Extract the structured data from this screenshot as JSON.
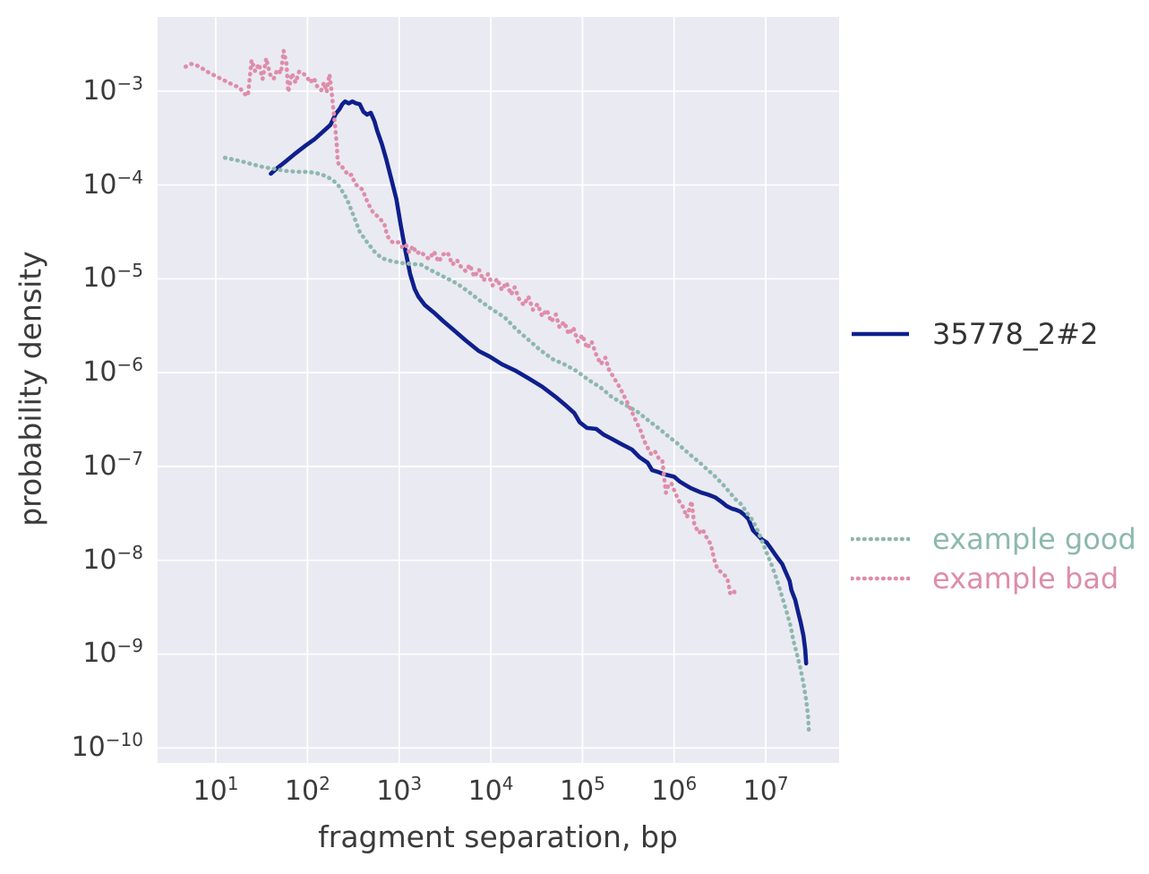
{
  "colors": {
    "figure_bg": "#ffffff",
    "plot_bg": "#eaeaf2",
    "grid": "#ffffff",
    "text": "#3b3b3b",
    "legend_main_text": "#333333"
  },
  "chart_data": {
    "type": "line",
    "title": "",
    "xlabel": "fragment separation, bp",
    "ylabel": "probability density",
    "x_scale": "log",
    "y_scale": "log",
    "xlim_log10": [
      0.365,
      7.8
    ],
    "ylim_log10": [
      -10.16,
      -2.21
    ],
    "x_tick_exponents": [
      1,
      2,
      3,
      4,
      5,
      6,
      7
    ],
    "y_tick_exponents": [
      -3,
      -4,
      -5,
      -6,
      -7,
      -8,
      -9,
      -10
    ],
    "grid": true,
    "legend_position": "right-outside",
    "series": [
      {
        "name": "35778_2#2",
        "color": "#0e1f8d",
        "linestyle": "solid",
        "linewidth": 4.6,
        "points_log10": [
          [
            1.6,
            -3.88
          ],
          [
            1.67,
            -3.82
          ],
          [
            1.76,
            -3.75
          ],
          [
            1.86,
            -3.67
          ],
          [
            1.98,
            -3.58
          ],
          [
            2.08,
            -3.51
          ],
          [
            2.16,
            -3.44
          ],
          [
            2.25,
            -3.36
          ],
          [
            2.28,
            -3.3
          ],
          [
            2.31,
            -3.24
          ],
          [
            2.35,
            -3.19
          ],
          [
            2.38,
            -3.14
          ],
          [
            2.41,
            -3.11
          ],
          [
            2.45,
            -3.13
          ],
          [
            2.49,
            -3.11
          ],
          [
            2.53,
            -3.13
          ],
          [
            2.57,
            -3.14
          ],
          [
            2.61,
            -3.22
          ],
          [
            2.65,
            -3.25
          ],
          [
            2.69,
            -3.23
          ],
          [
            2.73,
            -3.32
          ],
          [
            2.76,
            -3.42
          ],
          [
            2.81,
            -3.56
          ],
          [
            2.86,
            -3.73
          ],
          [
            2.91,
            -3.92
          ],
          [
            2.97,
            -4.15
          ],
          [
            3.02,
            -4.44
          ],
          [
            3.07,
            -4.71
          ],
          [
            3.12,
            -4.95
          ],
          [
            3.17,
            -5.11
          ],
          [
            3.21,
            -5.19
          ],
          [
            3.28,
            -5.28
          ],
          [
            3.38,
            -5.36
          ],
          [
            3.48,
            -5.45
          ],
          [
            3.6,
            -5.55
          ],
          [
            3.73,
            -5.66
          ],
          [
            3.87,
            -5.77
          ],
          [
            3.99,
            -5.83
          ],
          [
            4.12,
            -5.91
          ],
          [
            4.27,
            -5.98
          ],
          [
            4.41,
            -6.06
          ],
          [
            4.56,
            -6.15
          ],
          [
            4.71,
            -6.26
          ],
          [
            4.83,
            -6.36
          ],
          [
            4.91,
            -6.43
          ],
          [
            4.97,
            -6.53
          ],
          [
            5.05,
            -6.59
          ],
          [
            5.15,
            -6.6
          ],
          [
            5.23,
            -6.66
          ],
          [
            5.31,
            -6.7
          ],
          [
            5.42,
            -6.76
          ],
          [
            5.54,
            -6.82
          ],
          [
            5.62,
            -6.9
          ],
          [
            5.71,
            -6.96
          ],
          [
            5.76,
            -7.04
          ],
          [
            5.83,
            -7.06
          ],
          [
            5.88,
            -7.08
          ],
          [
            6.0,
            -7.11
          ],
          [
            6.06,
            -7.16
          ],
          [
            6.11,
            -7.19
          ],
          [
            6.18,
            -7.23
          ],
          [
            6.25,
            -7.26
          ],
          [
            6.3,
            -7.28
          ],
          [
            6.37,
            -7.3
          ],
          [
            6.45,
            -7.33
          ],
          [
            6.52,
            -7.38
          ],
          [
            6.57,
            -7.42
          ],
          [
            6.63,
            -7.45
          ],
          [
            6.67,
            -7.46
          ],
          [
            6.72,
            -7.48
          ],
          [
            6.77,
            -7.52
          ],
          [
            6.81,
            -7.56
          ],
          [
            6.86,
            -7.68
          ],
          [
            6.91,
            -7.73
          ],
          [
            6.96,
            -7.78
          ],
          [
            7.01,
            -7.81
          ],
          [
            7.06,
            -7.88
          ],
          [
            7.11,
            -7.95
          ],
          [
            7.14,
            -7.99
          ],
          [
            7.18,
            -8.04
          ],
          [
            7.21,
            -8.11
          ],
          [
            7.26,
            -8.22
          ],
          [
            7.28,
            -8.32
          ],
          [
            7.32,
            -8.42
          ],
          [
            7.35,
            -8.54
          ],
          [
            7.38,
            -8.66
          ],
          [
            7.41,
            -8.8
          ],
          [
            7.43,
            -8.95
          ],
          [
            7.44,
            -9.1
          ]
        ]
      },
      {
        "name": "example good",
        "color": "#8db8ad",
        "linestyle": "dotted",
        "linewidth": 4.6,
        "points_log10": [
          [
            1.1,
            -3.71
          ],
          [
            1.2,
            -3.73
          ],
          [
            1.29,
            -3.75
          ],
          [
            1.4,
            -3.78
          ],
          [
            1.52,
            -3.81
          ],
          [
            1.64,
            -3.83
          ],
          [
            1.76,
            -3.85
          ],
          [
            1.89,
            -3.86
          ],
          [
            2.01,
            -3.86
          ],
          [
            2.13,
            -3.88
          ],
          [
            2.21,
            -3.91
          ],
          [
            2.28,
            -3.95
          ],
          [
            2.35,
            -4.02
          ],
          [
            2.43,
            -4.15
          ],
          [
            2.5,
            -4.32
          ],
          [
            2.57,
            -4.5
          ],
          [
            2.65,
            -4.61
          ],
          [
            2.73,
            -4.71
          ],
          [
            2.81,
            -4.78
          ],
          [
            2.91,
            -4.81
          ],
          [
            3.01,
            -4.83
          ],
          [
            3.12,
            -4.84
          ],
          [
            3.24,
            -4.85
          ],
          [
            3.33,
            -4.9
          ],
          [
            3.43,
            -4.95
          ],
          [
            3.53,
            -5.0
          ],
          [
            3.63,
            -5.05
          ],
          [
            3.76,
            -5.14
          ],
          [
            3.89,
            -5.24
          ],
          [
            4.02,
            -5.33
          ],
          [
            4.15,
            -5.41
          ],
          [
            4.28,
            -5.54
          ],
          [
            4.41,
            -5.65
          ],
          [
            4.54,
            -5.76
          ],
          [
            4.68,
            -5.86
          ],
          [
            4.8,
            -5.91
          ],
          [
            4.93,
            -5.98
          ],
          [
            5.07,
            -6.08
          ],
          [
            5.2,
            -6.16
          ],
          [
            5.32,
            -6.26
          ],
          [
            5.46,
            -6.34
          ],
          [
            5.59,
            -6.41
          ],
          [
            5.72,
            -6.51
          ],
          [
            5.84,
            -6.6
          ],
          [
            5.95,
            -6.69
          ],
          [
            6.03,
            -6.75
          ],
          [
            6.11,
            -6.82
          ],
          [
            6.18,
            -6.88
          ],
          [
            6.28,
            -6.96
          ],
          [
            6.37,
            -7.04
          ],
          [
            6.44,
            -7.1
          ],
          [
            6.54,
            -7.2
          ],
          [
            6.6,
            -7.27
          ],
          [
            6.67,
            -7.35
          ],
          [
            6.74,
            -7.41
          ],
          [
            6.79,
            -7.49
          ],
          [
            6.86,
            -7.58
          ],
          [
            6.92,
            -7.7
          ],
          [
            6.96,
            -7.8
          ],
          [
            7.01,
            -7.92
          ],
          [
            7.06,
            -8.04
          ],
          [
            7.11,
            -8.18
          ],
          [
            7.15,
            -8.3
          ],
          [
            7.19,
            -8.43
          ],
          [
            7.23,
            -8.56
          ],
          [
            7.27,
            -8.7
          ],
          [
            7.3,
            -8.85
          ],
          [
            7.34,
            -9.0
          ],
          [
            7.38,
            -9.16
          ],
          [
            7.41,
            -9.31
          ],
          [
            7.44,
            -9.49
          ],
          [
            7.46,
            -9.65
          ],
          [
            7.47,
            -9.81
          ]
        ]
      },
      {
        "name": "example bad",
        "color": "#de8da8",
        "linestyle": "dotted",
        "linewidth": 4.6,
        "points_log10": [
          [
            0.67,
            -2.74
          ],
          [
            0.73,
            -2.71
          ],
          [
            0.78,
            -2.72
          ],
          [
            0.84,
            -2.75
          ],
          [
            0.9,
            -2.79
          ],
          [
            0.96,
            -2.82
          ],
          [
            1.02,
            -2.85
          ],
          [
            1.08,
            -2.88
          ],
          [
            1.14,
            -2.91
          ],
          [
            1.2,
            -2.94
          ],
          [
            1.26,
            -2.96
          ],
          [
            1.3,
            -3.02
          ],
          [
            1.35,
            -3.05
          ],
          [
            1.39,
            -2.67
          ],
          [
            1.43,
            -2.79
          ],
          [
            1.47,
            -2.71
          ],
          [
            1.51,
            -2.87
          ],
          [
            1.55,
            -2.65
          ],
          [
            1.59,
            -2.82
          ],
          [
            1.63,
            -2.87
          ],
          [
            1.67,
            -2.77
          ],
          [
            1.71,
            -2.81
          ],
          [
            1.74,
            -2.57
          ],
          [
            1.77,
            -2.7
          ],
          [
            1.79,
            -3.01
          ],
          [
            1.83,
            -2.81
          ],
          [
            1.87,
            -2.91
          ],
          [
            1.91,
            -2.79
          ],
          [
            1.95,
            -2.81
          ],
          [
            1.99,
            -2.84
          ],
          [
            2.03,
            -2.91
          ],
          [
            2.07,
            -2.86
          ],
          [
            2.11,
            -2.96
          ],
          [
            2.15,
            -2.99
          ],
          [
            2.18,
            -2.91
          ],
          [
            2.21,
            -3.01
          ],
          [
            2.24,
            -2.82
          ],
          [
            2.26,
            -2.98
          ],
          [
            2.28,
            -3.17
          ],
          [
            2.3,
            -3.36
          ],
          [
            2.32,
            -3.58
          ],
          [
            2.33,
            -3.75
          ],
          [
            2.35,
            -3.8
          ],
          [
            2.38,
            -3.81
          ],
          [
            2.41,
            -3.85
          ],
          [
            2.45,
            -3.9
          ],
          [
            2.48,
            -3.89
          ],
          [
            2.52,
            -3.99
          ],
          [
            2.56,
            -4.02
          ],
          [
            2.6,
            -4.05
          ],
          [
            2.64,
            -4.15
          ],
          [
            2.68,
            -4.23
          ],
          [
            2.72,
            -4.3
          ],
          [
            2.76,
            -4.33
          ],
          [
            2.8,
            -4.37
          ],
          [
            2.84,
            -4.42
          ],
          [
            2.87,
            -4.54
          ],
          [
            2.91,
            -4.6
          ],
          [
            2.95,
            -4.62
          ],
          [
            2.99,
            -4.61
          ],
          [
            3.03,
            -4.66
          ],
          [
            3.07,
            -4.63
          ],
          [
            3.11,
            -4.72
          ],
          [
            3.15,
            -4.65
          ],
          [
            3.19,
            -4.73
          ],
          [
            3.24,
            -4.71
          ],
          [
            3.28,
            -4.76
          ],
          [
            3.33,
            -4.79
          ],
          [
            3.38,
            -4.71
          ],
          [
            3.43,
            -4.82
          ],
          [
            3.48,
            -4.74
          ],
          [
            3.53,
            -4.72
          ],
          [
            3.58,
            -4.85
          ],
          [
            3.63,
            -4.8
          ],
          [
            3.68,
            -4.88
          ],
          [
            3.73,
            -4.92
          ],
          [
            3.77,
            -4.85
          ],
          [
            3.82,
            -4.98
          ],
          [
            3.87,
            -4.9
          ],
          [
            3.92,
            -5.02
          ],
          [
            3.97,
            -4.95
          ],
          [
            4.02,
            -5.07
          ],
          [
            4.07,
            -5.0
          ],
          [
            4.12,
            -5.12
          ],
          [
            4.17,
            -5.04
          ],
          [
            4.22,
            -5.17
          ],
          [
            4.26,
            -5.09
          ],
          [
            4.31,
            -5.22
          ],
          [
            4.36,
            -5.28
          ],
          [
            4.41,
            -5.19
          ],
          [
            4.46,
            -5.33
          ],
          [
            4.51,
            -5.27
          ],
          [
            4.56,
            -5.4
          ],
          [
            4.61,
            -5.33
          ],
          [
            4.66,
            -5.46
          ],
          [
            4.71,
            -5.38
          ],
          [
            4.75,
            -5.52
          ],
          [
            4.8,
            -5.46
          ],
          [
            4.85,
            -5.59
          ],
          [
            4.9,
            -5.52
          ],
          [
            4.95,
            -5.67
          ],
          [
            5.0,
            -5.6
          ],
          [
            5.05,
            -5.74
          ],
          [
            5.1,
            -5.67
          ],
          [
            5.15,
            -5.81
          ],
          [
            5.2,
            -5.91
          ],
          [
            5.25,
            -5.84
          ],
          [
            5.29,
            -5.97
          ],
          [
            5.34,
            -6.05
          ],
          [
            5.39,
            -6.13
          ],
          [
            5.44,
            -6.22
          ],
          [
            5.49,
            -6.32
          ],
          [
            5.54,
            -6.42
          ],
          [
            5.59,
            -6.53
          ],
          [
            5.64,
            -6.63
          ],
          [
            5.67,
            -6.72
          ],
          [
            5.71,
            -6.8
          ],
          [
            5.75,
            -6.87
          ],
          [
            5.79,
            -6.84
          ],
          [
            5.83,
            -6.91
          ],
          [
            5.87,
            -6.93
          ],
          [
            5.89,
            -7.11
          ],
          [
            5.91,
            -7.28
          ],
          [
            5.94,
            -7.19
          ],
          [
            5.97,
            -7.18
          ],
          [
            6.02,
            -7.3
          ],
          [
            6.06,
            -7.38
          ],
          [
            6.09,
            -7.42
          ],
          [
            6.14,
            -7.54
          ],
          [
            6.19,
            -7.37
          ],
          [
            6.22,
            -7.62
          ],
          [
            6.27,
            -7.71
          ],
          [
            6.31,
            -7.67
          ],
          [
            6.35,
            -7.75
          ],
          [
            6.4,
            -7.83
          ],
          [
            6.45,
            -8.04
          ],
          [
            6.48,
            -8.1
          ],
          [
            6.53,
            -8.14
          ],
          [
            6.58,
            -8.19
          ],
          [
            6.6,
            -8.29
          ],
          [
            6.61,
            -8.35
          ],
          [
            6.65,
            -8.32
          ],
          [
            6.67,
            -8.37
          ]
        ]
      }
    ]
  },
  "legend_main": {
    "label_color": "#333333"
  },
  "legend_examples": {
    "good_label_color": "#8db8ad",
    "bad_label_color": "#de8da8"
  }
}
